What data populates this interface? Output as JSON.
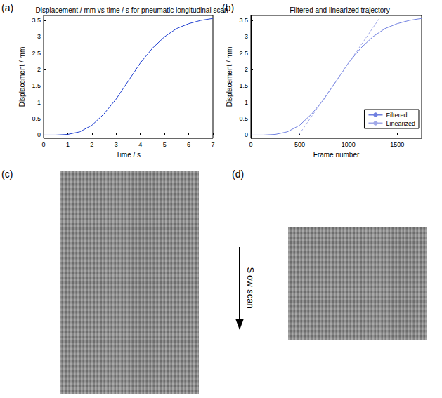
{
  "chart_data": [
    {
      "type": "line",
      "panel": "(a)",
      "title": "Displacement / mm vs time / s for pneumatic longitudinal scan",
      "x_label": "Time / s",
      "y_label": "Displacement / mm",
      "xlim": [
        0,
        7
      ],
      "xticks": [
        0,
        1,
        2,
        3,
        4,
        5,
        6,
        7
      ],
      "ylim": [
        -0.1,
        3.65
      ],
      "yticks": [
        0,
        0.5,
        1,
        1.5,
        2,
        2.5,
        3,
        3.5
      ],
      "grid": false,
      "series": [
        {
          "name": "Displacement",
          "color": "#1f3fd0",
          "line_style": "solid",
          "marker": "none",
          "x": [
            0,
            0.5,
            1,
            1.5,
            2,
            2.5,
            3,
            3.5,
            4,
            4.5,
            5,
            5.5,
            6,
            6.5,
            7
          ],
          "values": [
            0,
            0,
            0.02,
            0.1,
            0.3,
            0.65,
            1.1,
            1.65,
            2.2,
            2.65,
            3.0,
            3.25,
            3.4,
            3.5,
            3.56
          ]
        }
      ]
    },
    {
      "type": "line",
      "panel": "(b)",
      "title": "Filtered and linearized trajectory",
      "x_label": "Frame number",
      "y_label": "Displacement / mm",
      "xlim": [
        0,
        1750
      ],
      "xticks": [
        0,
        500,
        1000,
        1500
      ],
      "ylim": [
        -0.1,
        3.65
      ],
      "yticks": [
        0,
        0.5,
        1,
        1.5,
        2,
        2.5,
        3,
        3.5
      ],
      "grid": false,
      "legend": "lower right",
      "series": [
        {
          "name": "Filtered",
          "color": "#6f7fe0",
          "line_style": "solid",
          "marker": "none",
          "x": [
            0,
            125,
            250,
            375,
            500,
            625,
            750,
            875,
            1000,
            1125,
            1250,
            1375,
            1500,
            1625,
            1750
          ],
          "values": [
            0,
            0,
            0.02,
            0.1,
            0.3,
            0.65,
            1.1,
            1.65,
            2.2,
            2.65,
            3.0,
            3.25,
            3.4,
            3.5,
            3.56
          ]
        },
        {
          "name": "Linearized",
          "color": "#a0a8e8",
          "line_style": "dashed",
          "marker": "none",
          "x": [
            490,
            1315
          ],
          "values": [
            0,
            3.55
          ]
        }
      ]
    }
  ],
  "images": [
    {
      "panel": "(c)"
    },
    {
      "panel": "(d)"
    }
  ],
  "annotation": "Slow scan"
}
